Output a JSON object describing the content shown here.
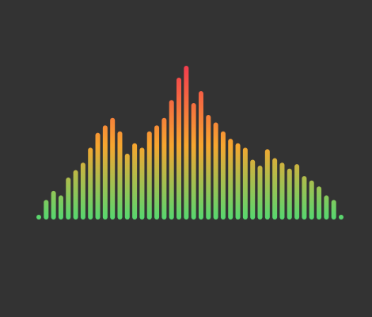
{
  "visualizer": {
    "colors": {
      "background": "#333333",
      "low": "#59d66e",
      "mid": "#f6a62f",
      "high": "#f43f4d"
    },
    "levels": [
      0.0,
      0.1,
      0.16,
      0.13,
      0.25,
      0.3,
      0.35,
      0.45,
      0.55,
      0.6,
      0.65,
      0.56,
      0.41,
      0.48,
      0.45,
      0.56,
      0.6,
      0.65,
      0.77,
      0.92,
      1.0,
      0.75,
      0.83,
      0.67,
      0.62,
      0.56,
      0.51,
      0.48,
      0.45,
      0.37,
      0.33,
      0.44,
      0.38,
      0.35,
      0.31,
      0.34,
      0.26,
      0.23,
      0.19,
      0.13,
      0.1,
      0.0
    ]
  }
}
